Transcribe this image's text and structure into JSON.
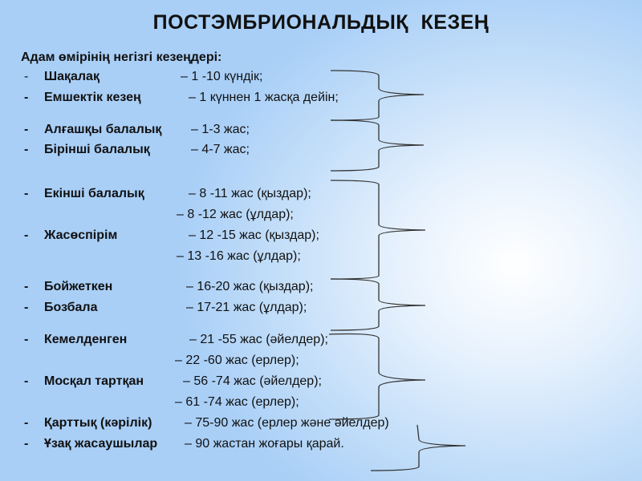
{
  "title": "ПОСТЭМБРИОНАЛЬДЫҚ  КЕЗЕҢ",
  "header": "Адам өмірінің негізгі кезеңдері:",
  "items": [
    {
      "dash": "-",
      "label": "Шақалақ",
      "value": "– 1 -10 күндік;"
    },
    {
      "dash": "-",
      "label": "Емшектік кезең",
      "value": "– 1 күннен 1 жасқа дейін;"
    },
    {
      "dash": "-",
      "label": "Алғашқы балалық",
      "value": "– 1-3 жас;"
    },
    {
      "dash": "-",
      "label": "Бірінші балалық",
      "value": "– 4-7 жас;"
    },
    {
      "dash": "-",
      "label": "Екінші балалық",
      "value": "– 8 -11 жас (қыздар);",
      "value2": "– 8 -12 жас (ұлдар);"
    },
    {
      "dash": "-",
      "label": "Жасөспірім",
      "value": "– 12 -15 жас (қыздар);",
      "value2": "– 13 -16 жас (ұлдар);"
    },
    {
      "dash": "-",
      "label": "Бойжеткен",
      "value": "– 16-20 жас (қыздар);"
    },
    {
      "dash": "-",
      "label": "Бозбала",
      "value": "– 17-21 жас (ұлдар);"
    },
    {
      "dash": "-",
      "label": "Кемелденген",
      "value": "– 21 -55 жас (әйелдер);",
      "value2": "– 22 -60 жас (ерлер);"
    },
    {
      "dash": "-",
      "label": "Мосқал тартқан",
      "value": "– 56 -74 жас (әйелдер);",
      "value2": "– 61 -74 жас (ерлер);"
    },
    {
      "dash": "-",
      "label": "Қарттық (кәрілік)",
      "value": "– 75-90 жас (ерлер және әйелдер)"
    },
    {
      "dash": "-",
      "label": "Ұзақ жасаушылар",
      "value": "– 90 жастан жоғары қарай."
    }
  ]
}
